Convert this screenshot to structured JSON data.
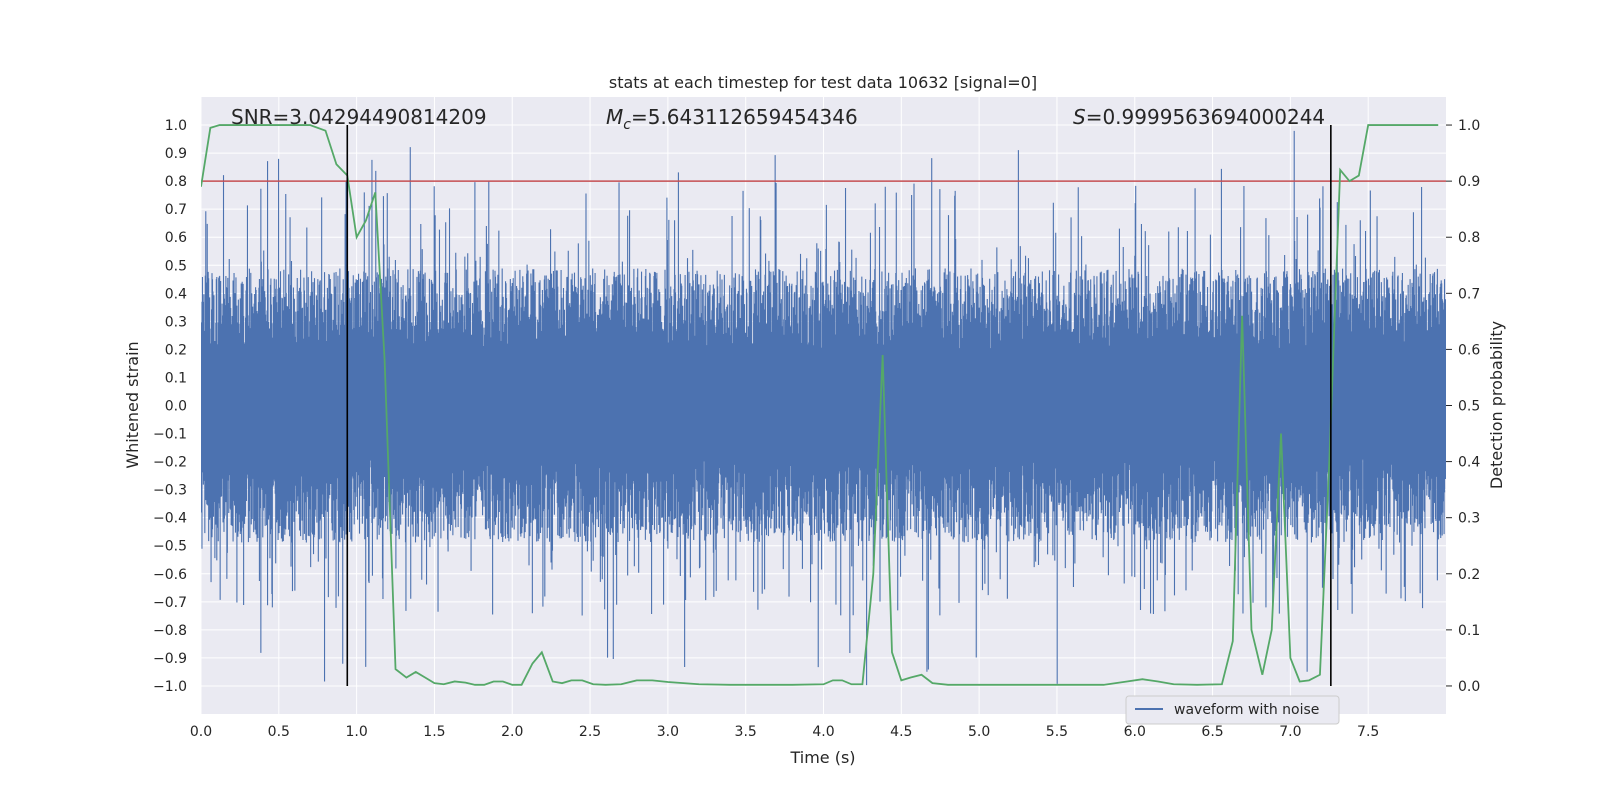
{
  "chart_data": {
    "type": "line",
    "title": "stats at each timestep for test data 10632 [signal=0]",
    "xlabel": "Time (s)",
    "ylabel": "Whitened strain",
    "y2label": "Detection probability",
    "xlim": [
      0.0,
      8.0
    ],
    "ylim": [
      -1.1,
      1.1
    ],
    "y2lim": [
      -0.05,
      1.05
    ],
    "xticks": [
      0.0,
      0.5,
      1.0,
      1.5,
      2.0,
      2.5,
      3.0,
      3.5,
      4.0,
      4.5,
      5.0,
      5.5,
      6.0,
      6.5,
      7.0,
      7.5
    ],
    "yticks": [
      -1.0,
      -0.9,
      -0.8,
      -0.7,
      -0.6,
      -0.5,
      -0.4,
      -0.3,
      -0.2,
      -0.1,
      0.0,
      0.1,
      0.2,
      0.3,
      0.4,
      0.5,
      0.6,
      0.7,
      0.8,
      0.9,
      1.0
    ],
    "y2ticks": [
      0.0,
      0.1,
      0.2,
      0.3,
      0.4,
      0.5,
      0.6,
      0.7,
      0.8,
      0.9,
      1.0
    ],
    "grid": true,
    "legend": {
      "position": "lower-right",
      "entries": [
        "waveform with noise"
      ]
    },
    "annotations": {
      "snr": "SNR=3.04294490814209",
      "mc_symbol": "M",
      "mc_sub": "c",
      "mc_value": "=5.643112659454346",
      "s_symbol": "S",
      "s_value": "=0.9999563694000244"
    },
    "threshold": {
      "axis": "y2",
      "value": 0.9
    },
    "vlines": [
      0.94,
      7.26
    ],
    "waveform": {
      "name": "waveform with noise",
      "x_range": [
        0.0,
        8.0
      ],
      "core_amplitude": 0.19,
      "band_amplitude": 0.45,
      "spike_max": 0.98,
      "spike_min": -1.0
    },
    "series": [
      {
        "name": "Detection probability",
        "axis": "y2",
        "x": [
          0.0,
          0.06,
          0.12,
          0.3,
          0.5,
          0.7,
          0.8,
          0.87,
          0.94,
          1.0,
          1.06,
          1.12,
          1.18,
          1.25,
          1.32,
          1.38,
          1.44,
          1.5,
          1.56,
          1.63,
          1.7,
          1.76,
          1.82,
          1.88,
          1.94,
          2.0,
          2.06,
          2.13,
          2.19,
          2.26,
          2.32,
          2.38,
          2.45,
          2.52,
          2.6,
          2.7,
          2.8,
          2.9,
          3.0,
          3.2,
          3.4,
          3.6,
          3.8,
          4.0,
          4.06,
          4.12,
          4.18,
          4.25,
          4.32,
          4.38,
          4.44,
          4.5,
          4.56,
          4.63,
          4.7,
          4.8,
          5.0,
          5.3,
          5.6,
          5.8,
          5.95,
          6.05,
          6.1,
          6.15,
          6.25,
          6.4,
          6.56,
          6.63,
          6.69,
          6.75,
          6.82,
          6.88,
          6.94,
          7.0,
          7.06,
          7.12,
          7.19,
          7.25,
          7.32,
          7.38,
          7.44,
          7.5,
          7.7,
          7.95
        ],
        "values": [
          0.89,
          0.995,
          1.0,
          1.0,
          1.0,
          1.0,
          0.99,
          0.93,
          0.91,
          0.8,
          0.83,
          0.88,
          0.58,
          0.03,
          0.015,
          0.025,
          0.015,
          0.005,
          0.003,
          0.008,
          0.006,
          0.002,
          0.002,
          0.008,
          0.008,
          0.002,
          0.002,
          0.04,
          0.06,
          0.008,
          0.005,
          0.01,
          0.01,
          0.003,
          0.002,
          0.003,
          0.01,
          0.01,
          0.007,
          0.003,
          0.002,
          0.002,
          0.002,
          0.003,
          0.01,
          0.01,
          0.003,
          0.003,
          0.2,
          0.59,
          0.06,
          0.01,
          0.015,
          0.02,
          0.005,
          0.002,
          0.002,
          0.002,
          0.002,
          0.002,
          0.008,
          0.012,
          0.01,
          0.008,
          0.003,
          0.002,
          0.003,
          0.08,
          0.66,
          0.1,
          0.02,
          0.1,
          0.45,
          0.05,
          0.008,
          0.01,
          0.02,
          0.4,
          0.92,
          0.9,
          0.91,
          1.0,
          1.0,
          1.0
        ]
      }
    ],
    "colors": {
      "plot_bg": "#EAEAF2",
      "grid": "#FFFFFF",
      "waveform": "#4C72B0",
      "probability": "#55A868",
      "threshold": "#C44E52",
      "vline": "#000000",
      "text": "#262626"
    }
  }
}
